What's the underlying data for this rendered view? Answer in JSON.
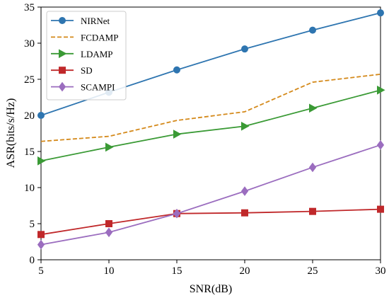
{
  "chart_data": {
    "type": "line",
    "title": "",
    "xlabel": "SNR(dB)",
    "ylabel": "ASR(bits/s/Hz)",
    "xlim": [
      5,
      30
    ],
    "ylim": [
      0,
      35
    ],
    "xticks": [
      5,
      10,
      15,
      20,
      25,
      30
    ],
    "yticks": [
      0,
      5,
      10,
      15,
      20,
      25,
      30,
      35
    ],
    "grid": false,
    "legend_position": "top-left",
    "x": [
      5,
      10,
      15,
      20,
      25,
      30
    ],
    "series": [
      {
        "name": "NIRNet",
        "values": [
          20.0,
          23.2,
          26.3,
          29.2,
          31.8,
          34.2
        ],
        "color": "#2e75b0",
        "dash": "solid",
        "marker": "circle"
      },
      {
        "name": "FCDAMP",
        "values": [
          16.4,
          17.1,
          19.3,
          20.5,
          24.6,
          25.7
        ],
        "color": "#d4891a",
        "dash": "dashed",
        "marker": "none"
      },
      {
        "name": "LDAMP",
        "values": [
          13.7,
          15.6,
          17.4,
          18.5,
          21.0,
          23.5
        ],
        "color": "#3a9a35",
        "dash": "solid",
        "marker": "triangle-right"
      },
      {
        "name": "SD",
        "values": [
          3.5,
          5.0,
          6.4,
          6.5,
          6.7,
          7.0
        ],
        "color": "#c0282a",
        "dash": "solid",
        "marker": "square"
      },
      {
        "name": "SCAMPI",
        "values": [
          2.1,
          3.8,
          6.4,
          9.5,
          12.8,
          15.9
        ],
        "color": "#9b6dbf",
        "dash": "solid",
        "marker": "diamond"
      }
    ]
  }
}
